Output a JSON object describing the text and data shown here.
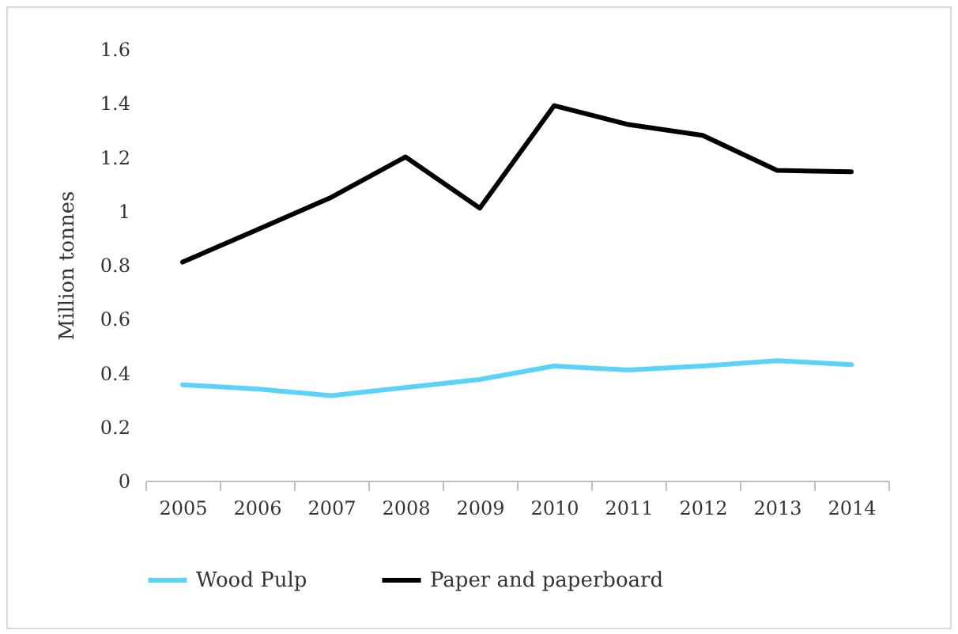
{
  "chart_data": {
    "type": "line",
    "ylabel": "Million tonnes",
    "categories": [
      "2005",
      "2006",
      "2007",
      "2008",
      "2009",
      "2010",
      "2011",
      "2012",
      "2013",
      "2014"
    ],
    "series": [
      {
        "name": "Wood Pulp",
        "color": "#5bd2f7",
        "values": [
          0.355,
          0.34,
          0.315,
          0.345,
          0.375,
          0.425,
          0.41,
          0.425,
          0.445,
          0.43
        ]
      },
      {
        "name": "Paper and paperboard",
        "color": "#000000",
        "values": [
          0.81,
          0.93,
          1.05,
          1.2,
          1.01,
          1.39,
          1.32,
          1.28,
          1.15,
          1.145
        ]
      }
    ],
    "ylim": [
      0,
      1.6
    ],
    "yticks": [
      0,
      0.2,
      0.4,
      0.6,
      0.8,
      1,
      1.2,
      1.4,
      1.6
    ],
    "grid": false,
    "legend": "bottom",
    "marker": "none",
    "line_style": "solid"
  }
}
